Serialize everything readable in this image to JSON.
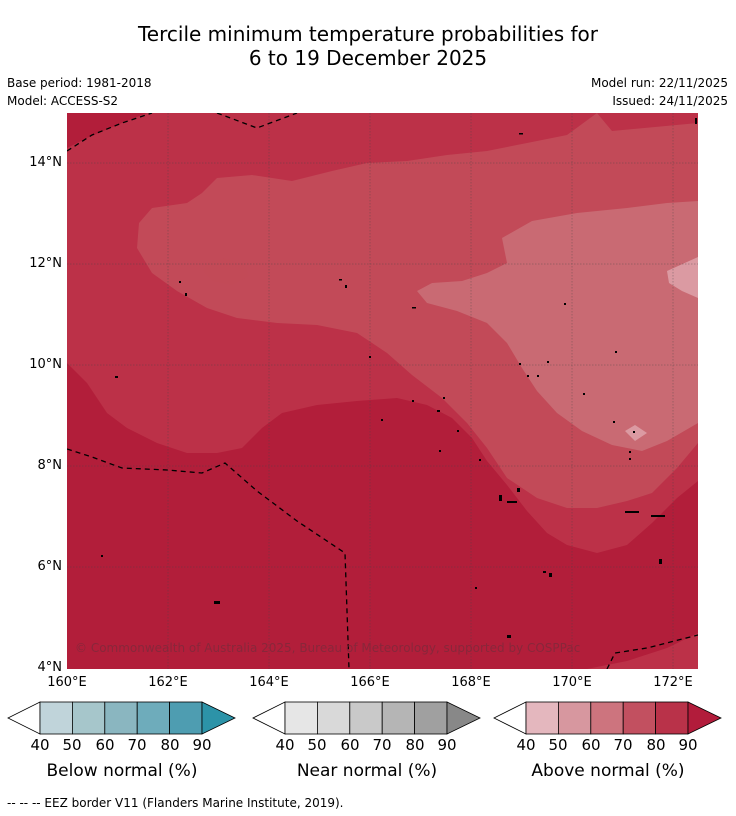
{
  "title": {
    "line1": "Tercile minimum temperature probabilities for",
    "line2": "6 to 19 December 2025"
  },
  "meta": {
    "base_period": "Base period: 1981-2018",
    "model": "Model: ACCESS-S2",
    "model_run": "Model run: 22/11/2025",
    "issued": "Issued: 24/11/2025"
  },
  "map": {
    "y_ticks": [
      "14°N",
      "12°N",
      "10°N",
      "8°N",
      "6°N",
      "4°N"
    ],
    "x_ticks": [
      "160°E",
      "162°E",
      "164°E",
      "166°E",
      "168°E",
      "170°E",
      "172°E"
    ],
    "credit": "© Commonwealth of Australia 2025, Bureau of Meteorology, supported by COSPPac",
    "colors": {
      "p90": "#b21e3a",
      "p80": "#bc3148",
      "p70": "#c24a58",
      "p60": "#c96a73",
      "p50": "#db9aa2"
    }
  },
  "legends": [
    {
      "title": "Below normal (%)",
      "ticks": [
        "40",
        "50",
        "60",
        "70",
        "80",
        "90"
      ],
      "colors": [
        "#c0d4da",
        "#a6c6cb",
        "#8ab6c0",
        "#6eacbb",
        "#4e9db1",
        "#2c93a8"
      ]
    },
    {
      "title": "Near normal (%)",
      "ticks": [
        "40",
        "50",
        "60",
        "70",
        "80",
        "90"
      ],
      "colors": [
        "#e6e6e6",
        "#d9d9d9",
        "#c9c9c9",
        "#b5b5b5",
        "#a0a0a0",
        "#888888"
      ]
    },
    {
      "title": "Above normal (%)",
      "ticks": [
        "40",
        "50",
        "60",
        "70",
        "80",
        "90"
      ],
      "colors": [
        "#e4b7be",
        "#d7979f",
        "#cd747e",
        "#c25060",
        "#b93249",
        "#b21c3b"
      ]
    }
  ],
  "footer": "--  --  -- EEZ border V11 (Flanders Marine Institute, 2019)."
}
